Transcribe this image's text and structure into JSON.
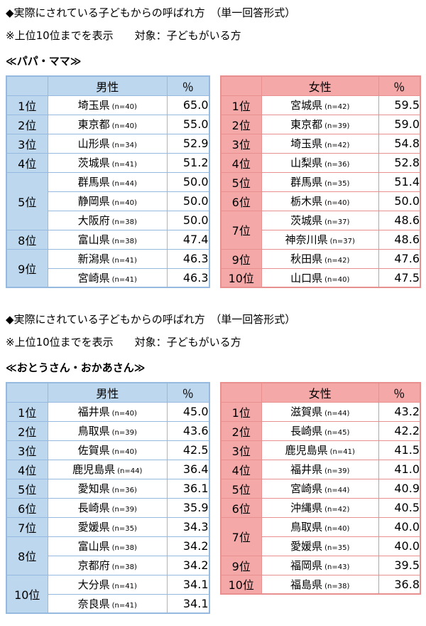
{
  "colors": {
    "male_bg": "#BDD7EE",
    "male_border": "#95B9DF",
    "female_bg": "#F5A8A8",
    "female_border": "#E89090"
  },
  "sections": [
    {
      "heading": "◆実際にされている子どもからの呼ばれ方　（単一回答形式）",
      "note": "※上位10位までを表示　　対象：子どもがいる方",
      "group_label": "≪パパ・ママ≫",
      "tables": [
        {
          "gender": "男性",
          "header": {
            "rank": "",
            "name": "男性",
            "pct": "％"
          },
          "rows": [
            {
              "rank": "1位",
              "name": "埼玉県",
              "n": "(n=40)",
              "pct": "65.0"
            },
            {
              "rank": "2位",
              "name": "東京都",
              "n": "(n=40)",
              "pct": "55.0"
            },
            {
              "rank": "3位",
              "name": "山形県",
              "n": "(n=34)",
              "pct": "52.9"
            },
            {
              "rank": "4位",
              "name": "茨城県",
              "n": "(n=41)",
              "pct": "51.2"
            },
            {
              "rank": "5位",
              "span": 3,
              "name": "群馬県",
              "n": "(n=44)",
              "pct": "50.0"
            },
            {
              "name": "静岡県",
              "n": "(n=40)",
              "pct": "50.0"
            },
            {
              "name": "大阪府",
              "n": "(n=38)",
              "pct": "50.0"
            },
            {
              "rank": "8位",
              "name": "富山県",
              "n": "(n=38)",
              "pct": "47.4"
            },
            {
              "rank": "9位",
              "span": 2,
              "name": "新潟県",
              "n": "(n=41)",
              "pct": "46.3"
            },
            {
              "name": "宮崎県",
              "n": "(n=41)",
              "pct": "46.3"
            }
          ]
        },
        {
          "gender": "女性",
          "header": {
            "rank": "",
            "name": "女性",
            "pct": "％"
          },
          "rows": [
            {
              "rank": "1位",
              "name": "宮城県",
              "n": "(n=42)",
              "pct": "59.5"
            },
            {
              "rank": "2位",
              "name": "東京都",
              "n": "(n=39)",
              "pct": "59.0"
            },
            {
              "rank": "3位",
              "name": "埼玉県",
              "n": "(n=42)",
              "pct": "54.8"
            },
            {
              "rank": "4位",
              "name": "山梨県",
              "n": "(n=36)",
              "pct": "52.8"
            },
            {
              "rank": "5位",
              "name": "群馬県",
              "n": "(n=35)",
              "pct": "51.4"
            },
            {
              "rank": "6位",
              "name": "栃木県",
              "n": "(n=40)",
              "pct": "50.0"
            },
            {
              "rank": "7位",
              "span": 2,
              "name": "茨城県",
              "n": "(n=37)",
              "pct": "48.6"
            },
            {
              "name": "神奈川県",
              "n": "(n=37)",
              "pct": "48.6"
            },
            {
              "rank": "9位",
              "name": "秋田県",
              "n": "(n=42)",
              "pct": "47.6"
            },
            {
              "rank": "10位",
              "name": "山口県",
              "n": "(n=40)",
              "pct": "47.5"
            }
          ]
        }
      ]
    },
    {
      "heading": "◆実際にされている子どもからの呼ばれ方　（単一回答形式）",
      "note": "※上位10位までを表示　　対象：子どもがいる方",
      "group_label": "≪おとうさん・おかあさん≫",
      "tables": [
        {
          "gender": "男性",
          "header": {
            "rank": "",
            "name": "男性",
            "pct": "％"
          },
          "rows": [
            {
              "rank": "1位",
              "name": "福井県",
              "n": "(n=40)",
              "pct": "45.0"
            },
            {
              "rank": "2位",
              "name": "鳥取県",
              "n": "(n=39)",
              "pct": "43.6"
            },
            {
              "rank": "3位",
              "name": "佐賀県",
              "n": "(n=40)",
              "pct": "42.5"
            },
            {
              "rank": "4位",
              "name": "鹿児島県",
              "n": "(n=44)",
              "pct": "36.4"
            },
            {
              "rank": "5位",
              "name": "愛知県",
              "n": "(n=36)",
              "pct": "36.1"
            },
            {
              "rank": "6位",
              "name": "長崎県",
              "n": "(n=39)",
              "pct": "35.9"
            },
            {
              "rank": "7位",
              "name": "愛媛県",
              "n": "(n=35)",
              "pct": "34.3"
            },
            {
              "rank": "8位",
              "span": 2,
              "name": "富山県",
              "n": "(n=38)",
              "pct": "34.2"
            },
            {
              "name": "京都府",
              "n": "(n=38)",
              "pct": "34.2"
            },
            {
              "rank": "10位",
              "span": 2,
              "name": "大分県",
              "n": "(n=41)",
              "pct": "34.1"
            },
            {
              "name": "奈良県",
              "n": "(n=41)",
              "pct": "34.1"
            }
          ]
        },
        {
          "gender": "女性",
          "header": {
            "rank": "",
            "name": "女性",
            "pct": "％"
          },
          "rows": [
            {
              "rank": "1位",
              "name": "滋賀県",
              "n": "(n=44)",
              "pct": "43.2"
            },
            {
              "rank": "2位",
              "name": "長崎県",
              "n": "(n=45)",
              "pct": "42.2"
            },
            {
              "rank": "3位",
              "name": "鹿児島県",
              "n": "(n=41)",
              "pct": "41.5"
            },
            {
              "rank": "4位",
              "name": "福井県",
              "n": "(n=39)",
              "pct": "41.0"
            },
            {
              "rank": "5位",
              "name": "宮崎県",
              "n": "(n=44)",
              "pct": "40.9"
            },
            {
              "rank": "6位",
              "name": "沖縄県",
              "n": "(n=42)",
              "pct": "40.5"
            },
            {
              "rank": "7位",
              "span": 2,
              "name": "鳥取県",
              "n": "(n=40)",
              "pct": "40.0"
            },
            {
              "name": "愛媛県",
              "n": "(n=35)",
              "pct": "40.0"
            },
            {
              "rank": "9位",
              "name": "福岡県",
              "n": "(n=43)",
              "pct": "39.5"
            },
            {
              "rank": "10位",
              "name": "福島県",
              "n": "(n=38)",
              "pct": "36.8"
            }
          ]
        }
      ]
    }
  ]
}
